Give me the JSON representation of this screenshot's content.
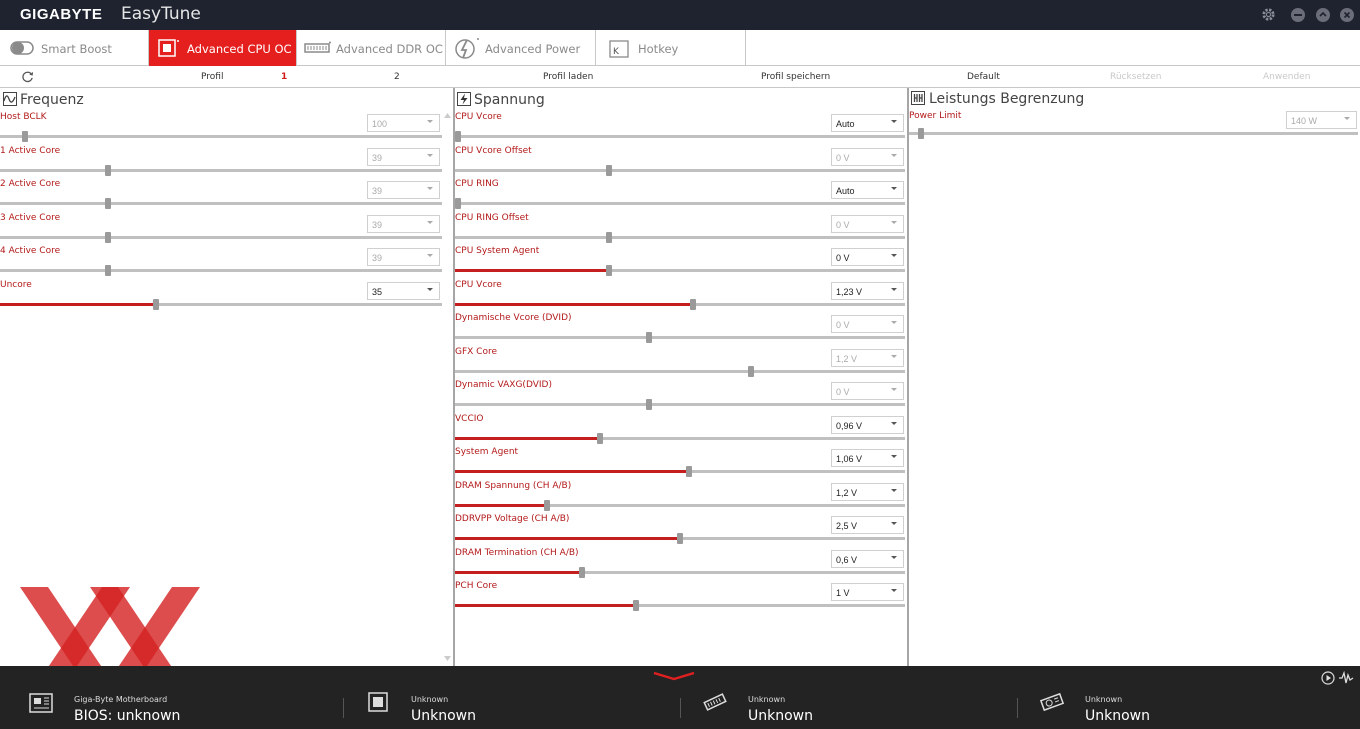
{
  "window": {
    "brand": "GIGABYTE",
    "app_name": "EasyTune"
  },
  "tabs": [
    {
      "label": "Smart Boost",
      "icon": "toggle-icon",
      "active": false
    },
    {
      "label": "Advanced CPU OC",
      "icon": "cpu-icon",
      "active": true
    },
    {
      "label": "Advanced DDR OC",
      "icon": "ram-icon",
      "active": false
    },
    {
      "label": "Advanced Power",
      "icon": "power-icon",
      "active": false
    },
    {
      "label": "Hotkey",
      "icon": "keyboard-key-icon",
      "active": false
    }
  ],
  "profilebar": {
    "profil": "Profil",
    "p1": "1",
    "p2": "2",
    "load": "Profil laden",
    "save": "Profil speichern",
    "default": "Default",
    "reset": "Rücksetzen",
    "apply": "Anwenden"
  },
  "panels": {
    "freq": {
      "title": "Frequenz",
      "rows": [
        {
          "label": "Host BCLK",
          "value": "100",
          "enabled": false,
          "level": 0.05
        },
        {
          "label": "1 Active Core",
          "value": "39",
          "enabled": false,
          "level": 0.24
        },
        {
          "label": "2 Active Core",
          "value": "39",
          "enabled": false,
          "level": 0.24
        },
        {
          "label": "3 Active Core",
          "value": "39",
          "enabled": false,
          "level": 0.24
        },
        {
          "label": "4 Active Core",
          "value": "39",
          "enabled": false,
          "level": 0.24
        },
        {
          "label": "Uncore",
          "value": "35",
          "enabled": true,
          "level": 0.35
        }
      ]
    },
    "volt": {
      "title": "Spannung",
      "rows": [
        {
          "label": "CPU Vcore",
          "value": "Auto",
          "enabled": true,
          "level": 0.0,
          "filled": false
        },
        {
          "label": "CPU Vcore Offset",
          "value": "0 V",
          "enabled": false,
          "level": 0.34,
          "filled": false
        },
        {
          "label": "CPU RING",
          "value": "Auto",
          "enabled": true,
          "level": 0.0,
          "filled": false
        },
        {
          "label": "CPU RING Offset",
          "value": "0 V",
          "enabled": false,
          "level": 0.34,
          "filled": false
        },
        {
          "label": "CPU System Agent",
          "value": "0 V",
          "enabled": true,
          "level": 0.34,
          "filled": true
        },
        {
          "label": "CPU Vcore",
          "value": "1,23 V",
          "enabled": true,
          "level": 0.53,
          "filled": true
        },
        {
          "label": "Dynamische Vcore (DVID)",
          "value": "0 V",
          "enabled": false,
          "level": 0.43,
          "filled": false
        },
        {
          "label": "GFX Core",
          "value": "1,2 V",
          "enabled": false,
          "level": 0.66,
          "filled": false
        },
        {
          "label": "Dynamic VAXG(DVID)",
          "value": "0 V",
          "enabled": false,
          "level": 0.43,
          "filled": false
        },
        {
          "label": "VCCIO",
          "value": "0,96 V",
          "enabled": true,
          "level": 0.32,
          "filled": true
        },
        {
          "label": "System Agent",
          "value": "1,06 V",
          "enabled": true,
          "level": 0.52,
          "filled": true
        },
        {
          "label": "DRAM Spannung (CH A/B)",
          "value": "1,2 V",
          "enabled": true,
          "level": 0.2,
          "filled": true
        },
        {
          "label": "DDRVPP Voltage (CH A/B)",
          "value": "2,5 V",
          "enabled": true,
          "level": 0.5,
          "filled": true
        },
        {
          "label": "DRAM Termination (CH A/B)",
          "value": "0,6 V",
          "enabled": true,
          "level": 0.28,
          "filled": true
        },
        {
          "label": "PCH Core",
          "value": "1 V",
          "enabled": true,
          "level": 0.4,
          "filled": true
        }
      ]
    },
    "power": {
      "title": "Leistungs Begrenzung",
      "rows": [
        {
          "label": "Power Limit",
          "value": "140 W",
          "enabled": false,
          "level": 0.02
        }
      ]
    }
  },
  "footer": {
    "items": [
      {
        "small": "Giga-Byte Motherboard",
        "big": "BIOS: unknown",
        "icon": "motherboard-icon"
      },
      {
        "small": "Unknown",
        "big": "Unknown",
        "icon": "cpu-icon"
      },
      {
        "small": "Unknown",
        "big": "Unknown",
        "icon": "memory-icon"
      },
      {
        "small": "Unknown",
        "big": "Unknown",
        "icon": "graphics-card-icon"
      }
    ]
  },
  "colors": {
    "accent": "#e51e1e",
    "titlebar": "#1f2330",
    "footer": "#232323",
    "label": "#b31a1a"
  }
}
